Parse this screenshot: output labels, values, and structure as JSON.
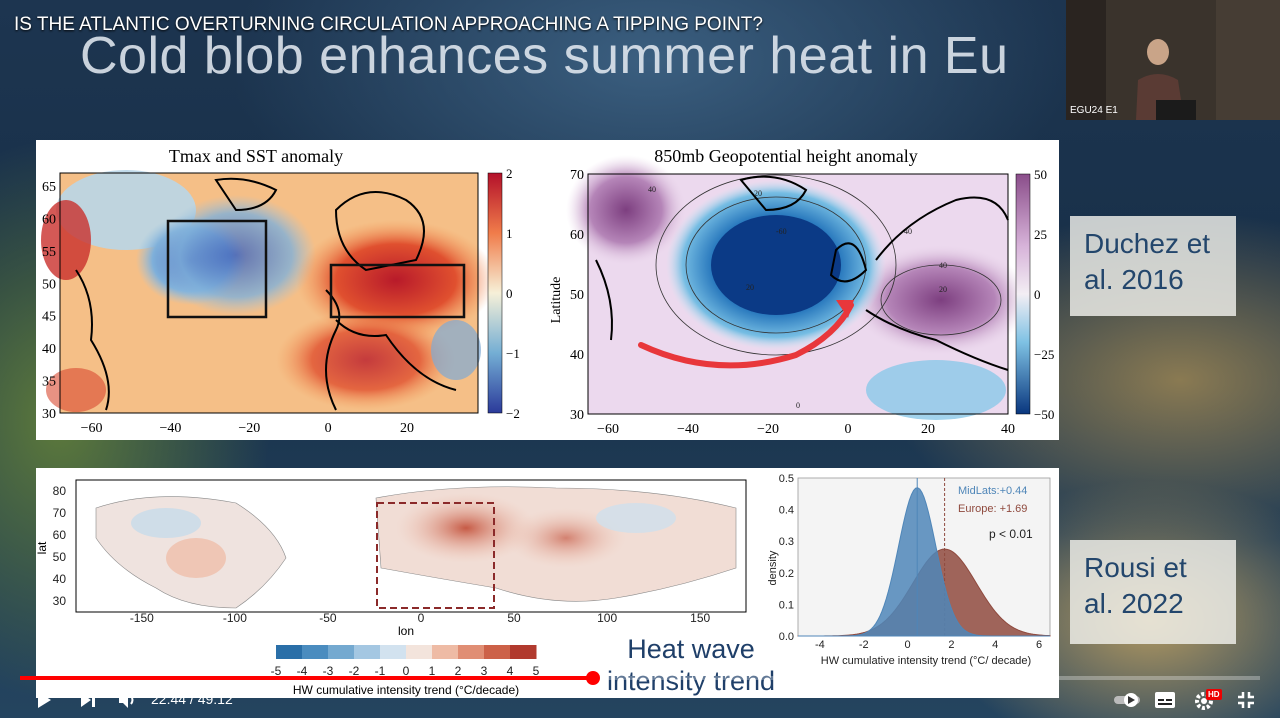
{
  "video": {
    "title": "IS THE ATLANTIC OVERTURNING CIRCULATION APPROACHING A TIPPING POINT?",
    "time_current": "22:44",
    "time_total": "49:12",
    "time_display": "22:44 / 49:12",
    "progress": 0.462,
    "camera_label": "EGU24 E1",
    "icons": [
      "clock-icon",
      "share-icon",
      "play-icon",
      "next-icon",
      "volume-icon",
      "autoplay-toggle",
      "subtitles-icon",
      "settings-icon",
      "exit-fullscreen-icon"
    ],
    "hd_badge": "HD"
  },
  "slide": {
    "headline": "Cold blob enhances summer heat in Eu",
    "ref_top": "Duchez et al. 2016",
    "ref_top_lines": [
      "Duchez et",
      "al. 2016"
    ],
    "ref_bottom_lines": [
      "Rousi et",
      "al. 2022"
    ],
    "hw_label_lines": [
      "Heat wave",
      "intensity trend"
    ]
  },
  "chart_data": [
    {
      "type": "heatmap",
      "title": "Tmax and SST anomaly",
      "x_ticks": [
        "−60",
        "−40",
        "−20",
        "0",
        "20"
      ],
      "y_ticks": [
        "65",
        "60",
        "55",
        "50",
        "45",
        "40",
        "35",
        "30"
      ],
      "colorbar_ticks": [
        "2",
        "1",
        "0",
        "−1",
        "−2"
      ],
      "colorbar_range": [
        -2,
        2
      ],
      "boxes": [
        {
          "lon": [
            -40,
            -15
          ],
          "lat": [
            45,
            60
          ]
        },
        {
          "lon": [
            0,
            35
          ],
          "lat": [
            45,
            53
          ]
        }
      ]
    },
    {
      "type": "heatmap",
      "title": "850mb Geopotential height anomaly",
      "ylabel": "Latitude",
      "x_ticks": [
        "−60",
        "−40",
        "−20",
        "0",
        "20",
        "40"
      ],
      "y_ticks": [
        "70",
        "60",
        "50",
        "40",
        "30"
      ],
      "colorbar_ticks": [
        "50",
        "25",
        "0",
        "−25",
        "−50"
      ],
      "colorbar_range": [
        -50,
        50
      ],
      "contour_labels": [
        "40",
        "20",
        "-60",
        "40",
        "20",
        "40",
        "20",
        "0"
      ]
    },
    {
      "type": "heatmap",
      "xlabel": "lon",
      "ylabel": "lat",
      "x_ticks": [
        "-150",
        "-100",
        "-50",
        "0",
        "50",
        "100",
        "150"
      ],
      "y_ticks": [
        "80",
        "70",
        "60",
        "50",
        "40",
        "30"
      ],
      "colorbar_label": "HW cumulative intensity trend (°C/decade)",
      "colorbar_ticks": [
        "-5",
        "-4",
        "-3",
        "-2",
        "-1",
        "0",
        "1",
        "2",
        "3",
        "4",
        "5"
      ],
      "colorbar_colors": [
        "#2a6fa8",
        "#4a8cbf",
        "#74a9d0",
        "#a4c7e2",
        "#d2e2ef",
        "#f3e4dc",
        "#eebba5",
        "#e08e74",
        "#cc6148",
        "#b13a2e"
      ]
    },
    {
      "type": "area",
      "xlabel": "HW cumulative intensity trend (°C/ decade)",
      "ylabel": "density",
      "x_ticks": [
        "-4",
        "-2",
        "0",
        "2",
        "4",
        "6"
      ],
      "y_ticks": [
        "0.5",
        "0.4",
        "0.3",
        "0.2",
        "0.1",
        "0.0"
      ],
      "xlim": [
        -5,
        6.5
      ],
      "ylim": [
        0,
        0.5
      ],
      "legend": [
        "MidLats:+0.44",
        "Europe: +1.69"
      ],
      "annotation": "p < 0.01",
      "series": [
        {
          "name": "MidLats",
          "mean": 0.44,
          "sd": 0.85,
          "color": "#4f86b8"
        },
        {
          "name": "Europe",
          "mean": 1.69,
          "sd": 1.45,
          "color": "#8f4a3e"
        }
      ]
    }
  ]
}
